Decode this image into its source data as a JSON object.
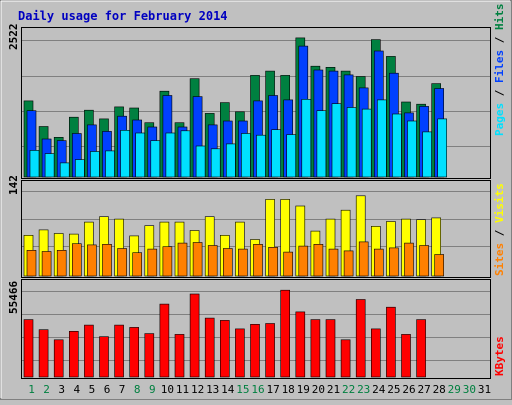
{
  "chart_data": [
    {
      "type": "bar",
      "title": "Daily usage for February 2014",
      "ymax_label": "2522",
      "ylim": [
        0,
        2522
      ],
      "grid": true,
      "legend": [
        {
          "label": "Pages",
          "color": "#00e0ff"
        },
        {
          "label": "Files",
          "color": "#0040ff"
        },
        {
          "label": "Hits",
          "color": "#008040"
        }
      ],
      "categories": [
        "1",
        "2",
        "3",
        "4",
        "5",
        "6",
        "7",
        "8",
        "9",
        "10",
        "11",
        "12",
        "13",
        "14",
        "15",
        "16",
        "17",
        "18",
        "19",
        "20",
        "21",
        "22",
        "23",
        "24",
        "25",
        "26",
        "27",
        "28",
        "29",
        "30",
        "31"
      ],
      "series": [
        {
          "name": "Hits",
          "color": "#008040",
          "values": [
            1400,
            930,
            730,
            1100,
            1230,
            1070,
            1290,
            1270,
            1000,
            1580,
            1000,
            1810,
            1170,
            1370,
            1200,
            1870,
            1950,
            1870,
            2560,
            2040,
            2020,
            1950,
            1850,
            2530,
            2220,
            1380,
            1340,
            1720,
            null,
            null,
            null
          ]
        },
        {
          "name": "Files",
          "color": "#0040ff",
          "values": [
            1220,
            700,
            670,
            800,
            960,
            840,
            1120,
            1050,
            920,
            1500,
            920,
            1480,
            960,
            1030,
            1030,
            1400,
            1500,
            1420,
            2410,
            1970,
            1950,
            1880,
            1640,
            2320,
            1910,
            1180,
            1300,
            1630,
            null,
            null,
            null
          ]
        },
        {
          "name": "Pages",
          "color": "#00e0ff",
          "values": [
            490,
            430,
            260,
            320,
            470,
            480,
            860,
            810,
            670,
            810,
            850,
            570,
            520,
            610,
            800,
            770,
            870,
            780,
            1430,
            1220,
            1350,
            1280,
            1250,
            1420,
            1160,
            1030,
            830,
            1070,
            null,
            null,
            null
          ]
        }
      ]
    },
    {
      "type": "bar",
      "ymax_label": "142",
      "ylim": [
        0,
        142
      ],
      "grid": true,
      "legend": [
        {
          "label": "Sites",
          "color": "#ff8000"
        },
        {
          "label": "Visits",
          "color": "#ffff00"
        }
      ],
      "categories": [
        "1",
        "2",
        "3",
        "4",
        "5",
        "6",
        "7",
        "8",
        "9",
        "10",
        "11",
        "12",
        "13",
        "14",
        "15",
        "16",
        "17",
        "18",
        "19",
        "20",
        "21",
        "22",
        "23",
        "24",
        "25",
        "26",
        "27",
        "28",
        "29",
        "30",
        "31"
      ],
      "series": [
        {
          "name": "Visits",
          "color": "#ffff00",
          "values": [
            68,
            77,
            71,
            70,
            90,
            99,
            95,
            67,
            84,
            90,
            90,
            76,
            99,
            68,
            90,
            61,
            128,
            128,
            117,
            75,
            95,
            110,
            134,
            83,
            91,
            95,
            94,
            97,
            null,
            null,
            null
          ]
        },
        {
          "name": "Sites",
          "color": "#ff8000",
          "values": [
            43,
            41,
            43,
            54,
            52,
            53,
            46,
            39,
            45,
            49,
            55,
            56,
            51,
            46,
            45,
            53,
            48,
            40,
            50,
            53,
            45,
            42,
            57,
            45,
            47,
            55,
            51,
            36,
            null,
            null,
            null
          ]
        }
      ]
    },
    {
      "type": "bar",
      "ymax_label": "55466",
      "ylim": [
        0,
        55466
      ],
      "grid": true,
      "legend": [
        {
          "label": "KBytes",
          "color": "#ff0000"
        }
      ],
      "categories": [
        "1",
        "2",
        "3",
        "4",
        "5",
        "6",
        "7",
        "8",
        "9",
        "10",
        "11",
        "12",
        "13",
        "14",
        "15",
        "16",
        "17",
        "18",
        "19",
        "20",
        "21",
        "22",
        "23",
        "24",
        "25",
        "26",
        "27",
        "28",
        "29",
        "30",
        "31"
      ],
      "series": [
        {
          "name": "KBytes",
          "color": "#ff0000",
          "values": [
            37000,
            30500,
            24000,
            29500,
            33500,
            26000,
            33500,
            32000,
            28000,
            47000,
            27500,
            53500,
            38000,
            36500,
            31000,
            34000,
            34500,
            56000,
            42000,
            37000,
            37000,
            24000,
            50000,
            31000,
            45000,
            27500,
            37000,
            null,
            null,
            null,
            null
          ]
        }
      ]
    }
  ],
  "weekend_days": [
    "1",
    "2",
    "8",
    "9",
    "15",
    "16",
    "22",
    "23",
    "29",
    "30"
  ],
  "day_label_colors": {
    "weekend": "#008040",
    "weekday": "#000000"
  }
}
